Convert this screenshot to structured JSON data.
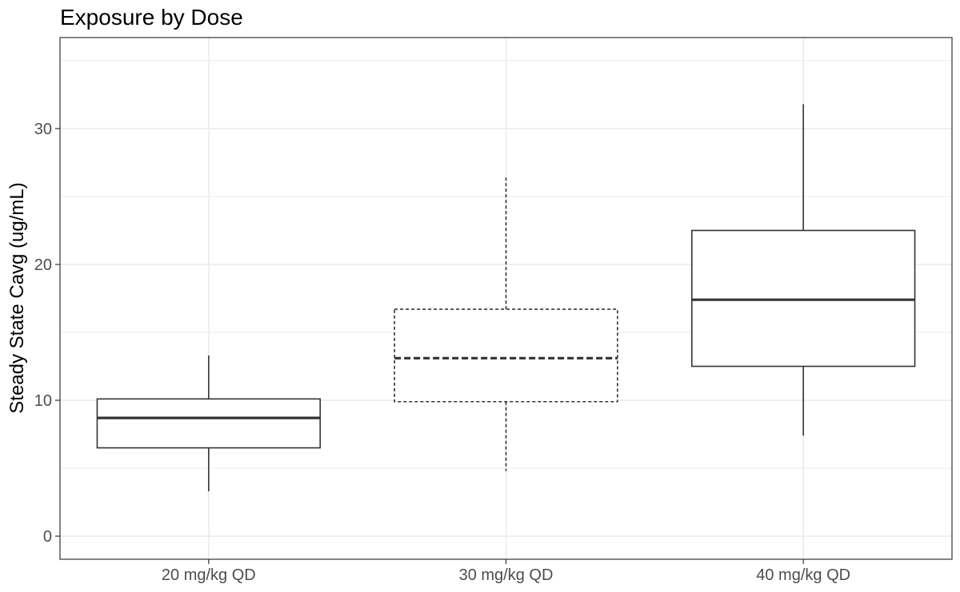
{
  "chart_data": {
    "type": "boxplot",
    "title": "Exposure by Dose",
    "xlabel": "",
    "ylabel": "Steady State Cavg (ug/mL)",
    "categories": [
      "20 mg/kg QD",
      "30 mg/kg QD",
      "40 mg/kg QD"
    ],
    "boxes": [
      {
        "category": "20 mg/kg QD",
        "whisker_low": 3.3,
        "q1": 6.5,
        "median": 8.7,
        "q3": 10.1,
        "whisker_high": 13.3,
        "linetype": "solid"
      },
      {
        "category": "30 mg/kg QD",
        "whisker_low": 4.8,
        "q1": 9.9,
        "median": 13.1,
        "q3": 16.7,
        "whisker_high": 26.5,
        "linetype": "dashed"
      },
      {
        "category": "40 mg/kg QD",
        "whisker_low": 7.4,
        "q1": 12.5,
        "median": 17.4,
        "q3": 22.5,
        "whisker_high": 31.8,
        "linetype": "solid"
      }
    ],
    "y_ticks": [
      0,
      10,
      20,
      30
    ],
    "y_tick_labels": [
      "0",
      "10",
      "20",
      "30"
    ],
    "ylim": [
      -1.7,
      36.7
    ],
    "grid": true,
    "legend": "none",
    "colors": {
      "box_line": "#333333",
      "grid": "#ebebeb",
      "panel_border": "#333333"
    }
  }
}
